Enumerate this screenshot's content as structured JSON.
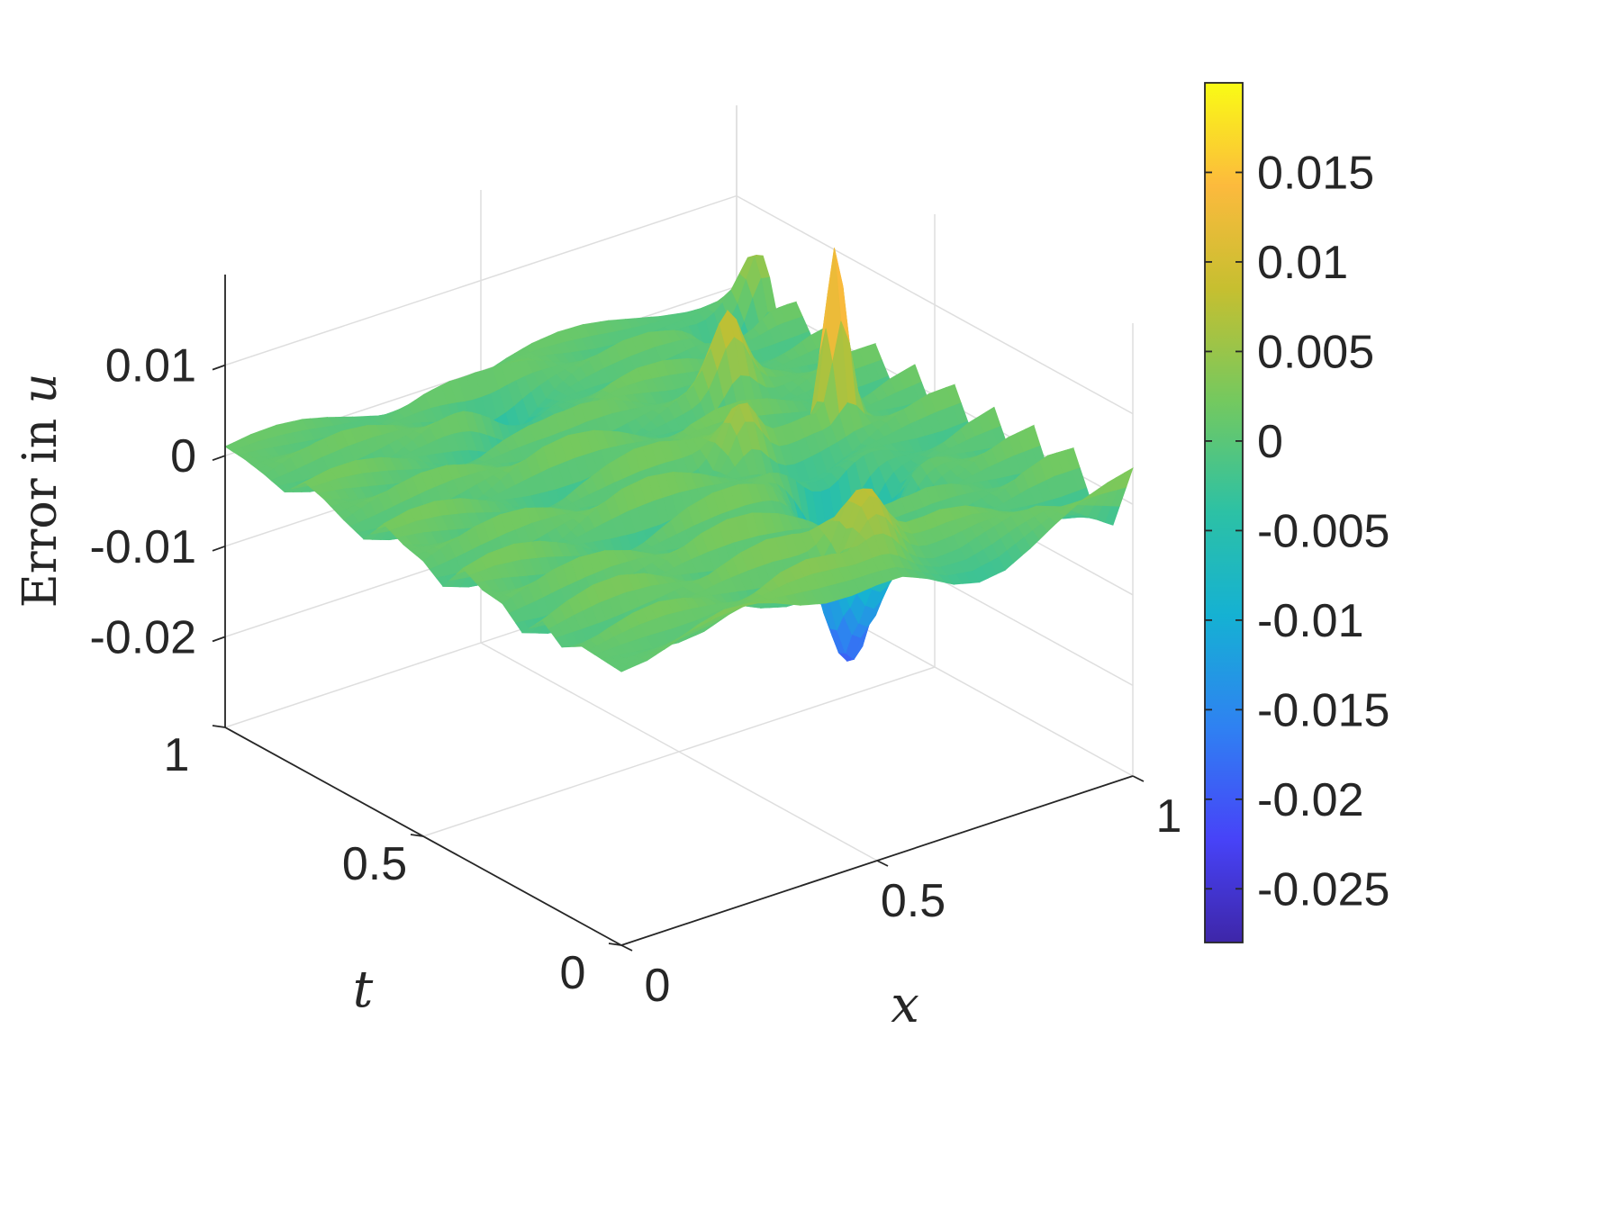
{
  "chart_data": {
    "type": "surface",
    "title": "",
    "xlabel": "x",
    "ylabel": "t",
    "zlabel_prefix": "Error in ",
    "zlabel_var": "u",
    "xlim": [
      0,
      1
    ],
    "ylim": [
      0,
      1
    ],
    "zlim": [
      -0.03,
      0.02
    ],
    "x_ticks": [
      {
        "value": 0,
        "label": "0"
      },
      {
        "value": 0.5,
        "label": "0.5"
      },
      {
        "value": 1,
        "label": "1"
      }
    ],
    "y_ticks": [
      {
        "value": 0,
        "label": "0"
      },
      {
        "value": 0.5,
        "label": "0.5"
      },
      {
        "value": 1,
        "label": "1"
      }
    ],
    "z_ticks": [
      {
        "value": 0.01,
        "label": "0.01"
      },
      {
        "value": 0,
        "label": "0"
      },
      {
        "value": -0.01,
        "label": "-0.01"
      },
      {
        "value": -0.02,
        "label": "-0.02"
      }
    ],
    "grid": true,
    "colormap": "parula",
    "colorbar": {
      "range": [
        -0.028,
        0.02
      ],
      "ticks": [
        {
          "value": 0.015,
          "label": "0.015"
        },
        {
          "value": 0.01,
          "label": "0.01"
        },
        {
          "value": 0.005,
          "label": "0.005"
        },
        {
          "value": 0,
          "label": "0"
        },
        {
          "value": -0.005,
          "label": "-0.005"
        },
        {
          "value": -0.01,
          "label": "-0.01"
        },
        {
          "value": -0.015,
          "label": "-0.015"
        },
        {
          "value": -0.02,
          "label": "-0.02"
        },
        {
          "value": -0.025,
          "label": "-0.025"
        }
      ]
    },
    "colormap_stops": [
      "#3e26a8",
      "#4743f8",
      "#2f81f2",
      "#15b1d3",
      "#2cc1a5",
      "#74c95f",
      "#c6bf30",
      "#fcba3d",
      "#f9fb15"
    ],
    "surface_grid": {
      "x": [
        0,
        0.05,
        0.1,
        0.15,
        0.2,
        0.25,
        0.3,
        0.35,
        0.4,
        0.45,
        0.5,
        0.55,
        0.6,
        0.65,
        0.7,
        0.75,
        0.8,
        0.85,
        0.9,
        0.95,
        1
      ],
      "t": [
        0,
        0.05,
        0.1,
        0.15,
        0.2,
        0.25,
        0.3,
        0.35,
        0.4,
        0.45,
        0.5,
        0.55,
        0.6,
        0.65,
        0.7,
        0.75,
        0.8,
        0.85,
        0.9,
        0.95,
        1
      ],
      "z": [
        [
          0.0002,
          0.0005,
          0.0014,
          0.0026,
          0.0033,
          0.0031,
          0.0022,
          0.001,
          0.0003,
          0.0002,
          0.0004,
          0.0003,
          -0.0008,
          -0.0023,
          -0.003,
          -0.0026,
          -0.0011,
          0.0007,
          0.0023,
          0.0033,
          0.004
        ],
        [
          0.0004,
          0.0001,
          -0.0003,
          -0.0006,
          -0.0003,
          0.0007,
          0.0021,
          0.0034,
          0.0039,
          0.0035,
          0.0024,
          0.001,
          -0.0002,
          -0.0007,
          -0.0005,
          0.0004,
          0.0012,
          0.0014,
          0.0004,
          -0.0016,
          -0.0035
        ],
        [
          0.0006,
          0.0016,
          0.0024,
          0.0027,
          0.0022,
          0.0011,
          -0.0004,
          -0.0017,
          -0.0025,
          -0.0026,
          -0.0017,
          -0.0003,
          0.0012,
          0.0023,
          0.0026,
          0.0021,
          0.0008,
          -0.0009,
          -0.0023,
          -0.003,
          -0.0028
        ],
        [
          -0.0007,
          -0.0013,
          -0.0016,
          -0.0013,
          -0.0005,
          0.0008,
          0.0022,
          0.0032,
          0.0037,
          0.0033,
          0.0022,
          0.0005,
          -0.0012,
          -0.0026,
          -0.0032,
          -0.0029,
          -0.0017,
          0.0,
          0.0017,
          0.0027,
          0.0026
        ],
        [
          0.0011,
          0.0023,
          0.0031,
          0.0032,
          0.0025,
          0.0011,
          -0.0006,
          -0.0021,
          -0.003,
          -0.0031,
          -0.0024,
          -0.001,
          0.0006,
          0.0019,
          0.0025,
          0.0023,
          0.0013,
          -0.0001,
          -0.0015,
          -0.0025,
          -0.0029
        ],
        [
          -0.0015,
          -0.0025,
          -0.0029,
          -0.0026,
          -0.0015,
          0.0,
          0.0017,
          0.0029,
          0.0035,
          0.0033,
          0.0023,
          0.0008,
          -0.0008,
          -0.0021,
          -0.0027,
          -0.0025,
          -0.0015,
          -0.0001,
          0.0013,
          0.0023,
          0.0027
        ],
        [
          0.0005,
          0.0015,
          0.0024,
          0.0028,
          0.0026,
          0.0017,
          0.0003,
          -0.0012,
          -0.0024,
          -0.0029,
          -0.0027,
          -0.0017,
          -0.0003,
          0.0011,
          0.0021,
          0.0024,
          0.002,
          0.001,
          -0.0004,
          -0.0018,
          -0.0028
        ],
        [
          0.0008,
          -0.0002,
          -0.0013,
          -0.002,
          -0.0021,
          -0.0015,
          -0.0003,
          0.0011,
          0.0024,
          0.0031,
          0.0031,
          0.0023,
          0.001,
          -0.0005,
          -0.0017,
          -0.0022,
          -0.002,
          -0.0011,
          0.0002,
          0.0015,
          0.0023
        ],
        [
          0.002,
          0.0027,
          0.0028,
          0.0022,
          0.001,
          -0.0006,
          -0.0021,
          -0.0031,
          -0.0033,
          -0.0026,
          -0.0012,
          0.0005,
          0.002,
          0.0028,
          0.0028,
          0.002,
          0.0006,
          -0.0009,
          -0.0021,
          -0.0027,
          -0.0025
        ],
        [
          -0.0012,
          -0.0022,
          -0.0026,
          -0.0023,
          -0.0013,
          0.0002,
          0.0018,
          0.003,
          0.0034,
          0.003,
          0.0019,
          0.0004,
          -0.0011,
          -0.0022,
          -0.0026,
          -0.0022,
          -0.0012,
          0.0002,
          0.0015,
          0.0023,
          0.0024
        ],
        [
          0.0004,
          0.0014,
          0.0023,
          0.0027,
          0.0025,
          0.0016,
          0.0002,
          -0.0013,
          -0.0025,
          -0.003,
          -0.0027,
          -0.0017,
          -0.0003,
          0.0011,
          0.0021,
          0.0024,
          0.0019,
          0.0008,
          -0.0006,
          -0.0018,
          -0.0024
        ],
        [
          0.001,
          0.0001,
          -0.0009,
          -0.0016,
          -0.0018,
          -0.0013,
          -0.0002,
          0.0012,
          0.0024,
          0.0031,
          0.003,
          0.0022,
          0.0009,
          -0.0005,
          -0.0016,
          -0.0021,
          -0.0019,
          -0.001,
          0.0003,
          0.0015,
          0.0022
        ],
        [
          0.0021,
          0.0027,
          0.0027,
          0.0021,
          0.0009,
          -0.0006,
          -0.0021,
          -0.003,
          -0.0032,
          -0.0025,
          -0.0012,
          0.0004,
          0.0018,
          0.0026,
          0.0026,
          0.0019,
          0.0007,
          -0.0007,
          -0.0018,
          -0.0023,
          -0.0021
        ],
        [
          -0.0008,
          -0.0018,
          -0.0023,
          -0.0021,
          -0.0012,
          0.0002,
          0.0017,
          0.0028,
          0.0032,
          0.0028,
          0.0017,
          0.0002,
          -0.0012,
          -0.0022,
          -0.0025,
          -0.0021,
          -0.0011,
          0.0002,
          0.0014,
          0.0021,
          0.0021
        ],
        [
          0.0001,
          0.0011,
          0.002,
          0.0025,
          0.0024,
          0.0016,
          0.0003,
          -0.0012,
          -0.0023,
          -0.0028,
          -0.0025,
          -0.0016,
          -0.0002,
          0.0011,
          0.002,
          0.0022,
          0.0017,
          0.0007,
          -0.0006,
          -0.0017,
          -0.0022
        ],
        [
          0.0012,
          0.0003,
          -0.0007,
          -0.0014,
          -0.0016,
          -0.0011,
          0.0,
          0.0013,
          0.0024,
          0.003,
          0.0029,
          0.0021,
          0.0008,
          -0.0005,
          -0.0015,
          -0.0019,
          -0.0016,
          -0.0008,
          0.0004,
          0.0015,
          0.0021
        ],
        [
          0.0019,
          0.0024,
          0.0024,
          0.0018,
          0.0007,
          -0.0007,
          -0.002,
          -0.0028,
          -0.0029,
          -0.0022,
          -0.0009,
          0.0005,
          0.0017,
          0.0023,
          0.0022,
          0.0015,
          0.0004,
          -0.0008,
          -0.0017,
          -0.002,
          -0.0018
        ],
        [
          -0.0004,
          -0.0013,
          -0.0017,
          -0.0015,
          -0.0007,
          0.0006,
          0.0019,
          0.0028,
          0.003,
          0.0025,
          0.0014,
          0.0001,
          -0.0011,
          -0.0019,
          -0.0021,
          -0.0017,
          -0.0008,
          0.0004,
          0.0014,
          0.002,
          0.0019
        ],
        [
          0.0003,
          0.0012,
          0.002,
          0.0023,
          0.002,
          0.0011,
          -0.0002,
          -0.0015,
          -0.0024,
          -0.0026,
          -0.0021,
          -0.001,
          0.0003,
          0.0014,
          0.002,
          0.002,
          0.0013,
          0.0002,
          -0.0009,
          -0.0017,
          -0.0019
        ],
        [
          0.0008,
          0.0002,
          -0.0005,
          -0.001,
          -0.0011,
          -0.0006,
          0.0004,
          0.0016,
          0.0025,
          0.0028,
          0.0025,
          0.0016,
          0.0004,
          -0.0007,
          -0.0014,
          -0.0016,
          -0.0012,
          -0.0004,
          0.0006,
          0.0014,
          0.0018
        ],
        [
          0.001,
          0.0014,
          0.0015,
          0.0012,
          0.0005,
          -0.0004,
          -0.0012,
          -0.0017,
          -0.0017,
          -0.0012,
          -0.0004,
          0.0005,
          0.0012,
          0.0015,
          0.0014,
          0.0009,
          0.0002,
          -0.0005,
          -0.001,
          -0.0012,
          -0.001
        ]
      ],
      "features": [
        {
          "x": 0.82,
          "t": 0.52,
          "value": 0.0195,
          "width": 0.025
        },
        {
          "x": 0.7,
          "t": 0.32,
          "value": -0.02,
          "width": 0.07
        },
        {
          "x": 0.55,
          "t": 0.1,
          "value": 0.008,
          "width": 0.05
        },
        {
          "x": 0.99,
          "t": 0.93,
          "value": 0.005,
          "width": 0.03
        },
        {
          "x": 0.9,
          "t": 0.9,
          "value": -0.006,
          "width": 0.04
        },
        {
          "x": 0.62,
          "t": 0.5,
          "value": 0.006,
          "width": 0.04
        },
        {
          "x": 0.75,
          "t": 0.7,
          "value": 0.007,
          "width": 0.04
        },
        {
          "x": 0.45,
          "t": 0.85,
          "value": -0.004,
          "width": 0.08
        }
      ]
    }
  }
}
